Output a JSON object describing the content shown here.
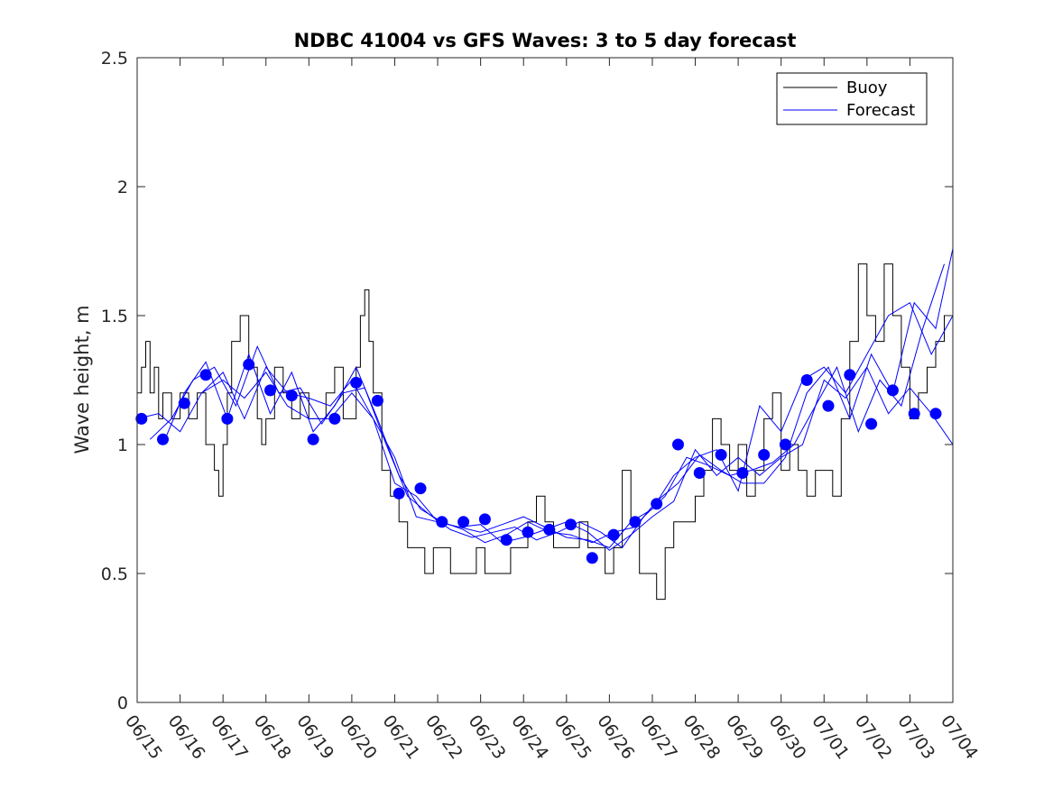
{
  "chart_data": {
    "type": "line",
    "title": "NDBC 41004 vs GFS Waves: 3 to 5 day forecast",
    "xlabel": "",
    "ylabel": "Wave height, m",
    "xlim": [
      "06/15",
      "07/04"
    ],
    "ylim": [
      0,
      2.5
    ],
    "yticks": [
      0,
      0.5,
      1,
      1.5,
      2,
      2.5
    ],
    "ytick_labels": [
      "0",
      "0.5",
      "1",
      "1.5",
      "2",
      "2.5"
    ],
    "xtick_labels": [
      "06/15",
      "06/16",
      "06/17",
      "06/18",
      "06/19",
      "06/20",
      "06/21",
      "06/22",
      "06/23",
      "06/24",
      "06/25",
      "06/26",
      "06/27",
      "06/28",
      "06/29",
      "06/30",
      "07/01",
      "07/02",
      "07/03",
      "07/04"
    ],
    "grid": false,
    "legend": {
      "position": "top-right",
      "entries": [
        "Buoy",
        "Forecast"
      ]
    },
    "colors": {
      "buoy": "#000000",
      "forecast": "#0000ff",
      "markers": "#0000ff"
    },
    "buoy": {
      "name": "Buoy",
      "x_days": [
        0,
        0.1,
        0.2,
        0.3,
        0.4,
        0.5,
        0.6,
        0.8,
        1.0,
        1.2,
        1.4,
        1.6,
        1.8,
        1.9,
        2.0,
        2.1,
        2.2,
        2.4,
        2.6,
        2.8,
        2.9,
        3.0,
        3.2,
        3.4,
        3.6,
        3.8,
        4.0,
        4.2,
        4.4,
        4.6,
        4.8,
        5.0,
        5.1,
        5.2,
        5.3,
        5.4,
        5.5,
        5.7,
        5.9,
        6.1,
        6.3,
        6.5,
        6.7,
        6.9,
        7.1,
        7.3,
        7.5,
        7.7,
        7.9,
        8.1,
        8.3,
        8.5,
        8.7,
        8.9,
        9.1,
        9.3,
        9.5,
        9.7,
        9.9,
        10.1,
        10.3,
        10.5,
        10.7,
        10.9,
        11.1,
        11.3,
        11.5,
        11.7,
        11.9,
        12.1,
        12.3,
        12.5,
        12.7,
        13.0,
        13.2,
        13.4,
        13.6,
        13.8,
        14.0,
        14.2,
        14.4,
        14.6,
        14.8,
        15.0,
        15.2,
        15.4,
        15.6,
        15.8,
        16.0,
        16.2,
        16.4,
        16.6,
        16.8,
        17.0,
        17.2,
        17.4,
        17.6,
        17.8,
        18.0,
        18.2,
        18.4,
        18.6,
        18.8,
        19.0
      ],
      "values": [
        1.2,
        1.3,
        1.4,
        1.2,
        1.3,
        1.1,
        1.2,
        1.1,
        1.2,
        1.1,
        1.2,
        1.0,
        0.9,
        0.8,
        1.0,
        1.2,
        1.4,
        1.5,
        1.3,
        1.1,
        1.0,
        1.1,
        1.3,
        1.2,
        1.1,
        1.2,
        1.1,
        1.1,
        1.2,
        1.3,
        1.1,
        1.1,
        1.3,
        1.5,
        1.6,
        1.4,
        1.2,
        0.9,
        0.8,
        0.7,
        0.6,
        0.6,
        0.5,
        0.6,
        0.6,
        0.5,
        0.5,
        0.5,
        0.6,
        0.5,
        0.5,
        0.5,
        0.6,
        0.6,
        0.7,
        0.8,
        0.7,
        0.6,
        0.6,
        0.6,
        0.7,
        0.6,
        0.6,
        0.5,
        0.6,
        0.9,
        0.7,
        0.5,
        0.5,
        0.4,
        0.6,
        0.7,
        0.7,
        0.8,
        0.9,
        1.1,
        1.0,
        0.9,
        1.0,
        0.8,
        0.9,
        1.1,
        1.2,
        0.9,
        1.0,
        0.9,
        0.8,
        0.9,
        0.9,
        0.8,
        1.1,
        1.4,
        1.7,
        1.5,
        1.4,
        1.7,
        1.5,
        1.3,
        1.1,
        1.2,
        1.3,
        1.4,
        1.5,
        1.3
      ]
    },
    "forecast_series": [
      {
        "x_days": [
          0,
          0.5,
          1.0,
          1.5,
          2.0,
          2.5,
          3.0,
          3.5,
          4.0,
          4.5,
          5.0,
          5.5,
          6.0,
          6.5,
          7.0,
          7.5,
          8.0,
          8.5,
          9.0,
          9.5,
          10.0,
          10.5,
          11.0,
          11.5,
          12.0,
          12.5,
          13.0,
          13.5,
          14.0,
          14.5,
          15.0,
          15.5,
          16.0,
          16.5,
          17.0,
          17.5,
          18.0,
          18.5,
          19.0
        ],
        "values": [
          1.1,
          1.12,
          1.05,
          1.2,
          1.28,
          1.1,
          1.3,
          1.2,
          1.18,
          1.15,
          1.25,
          1.1,
          0.85,
          0.8,
          0.7,
          0.68,
          0.69,
          0.62,
          0.64,
          0.67,
          0.7,
          0.66,
          0.59,
          0.65,
          0.72,
          0.78,
          0.98,
          0.88,
          0.95,
          0.88,
          0.95,
          1.0,
          1.25,
          1.18,
          1.3,
          1.12,
          1.22,
          1.12,
          1.0
        ]
      },
      {
        "x_days": [
          0.3,
          0.8,
          1.3,
          1.8,
          2.3,
          2.8,
          3.3,
          3.8,
          4.3,
          4.8,
          5.3,
          5.8,
          6.3,
          6.8,
          7.3,
          7.8,
          8.3,
          8.8,
          9.3,
          9.8,
          10.3,
          10.8,
          11.3,
          11.8,
          12.3,
          12.8,
          13.3,
          13.8,
          14.3,
          14.8,
          15.3,
          15.8,
          16.3,
          16.8,
          17.3,
          17.8,
          18.3,
          18.8
        ],
        "values": [
          1.02,
          1.1,
          1.25,
          1.3,
          1.15,
          1.38,
          1.2,
          1.22,
          1.08,
          1.2,
          1.22,
          1.0,
          0.8,
          0.73,
          0.67,
          0.64,
          0.66,
          0.68,
          0.63,
          0.66,
          0.7,
          0.66,
          0.6,
          0.72,
          0.8,
          0.95,
          0.92,
          0.88,
          0.9,
          0.93,
          1.0,
          1.15,
          1.3,
          1.05,
          1.25,
          1.15,
          1.45,
          1.7
        ]
      },
      {
        "x_days": [
          0.6,
          1.1,
          1.6,
          2.1,
          2.6,
          3.1,
          3.6,
          4.1,
          4.6,
          5.1,
          5.6,
          6.1,
          6.6,
          7.1,
          7.6,
          8.1,
          8.6,
          9.1,
          9.6,
          10.1,
          10.6,
          11.1,
          11.6,
          12.1,
          12.6,
          13.1,
          13.6,
          14.1,
          14.6,
          15.1,
          15.6,
          16.1,
          16.6,
          17.1,
          17.6,
          18.1,
          18.6,
          19.0
        ],
        "values": [
          1.0,
          1.2,
          1.32,
          1.1,
          1.35,
          1.12,
          1.28,
          1.05,
          1.15,
          1.3,
          1.1,
          0.88,
          0.75,
          0.7,
          0.67,
          0.62,
          0.65,
          0.7,
          0.66,
          0.65,
          0.62,
          0.66,
          0.68,
          0.78,
          0.85,
          0.96,
          0.9,
          0.85,
          0.85,
          0.95,
          1.2,
          1.3,
          1.1,
          1.35,
          1.2,
          1.55,
          1.45,
          1.76
        ]
      },
      {
        "x_days": [
          1.5,
          2.0,
          2.5,
          3.0,
          3.5,
          4.0,
          4.5,
          5.0,
          5.5,
          6.0,
          6.5,
          7.0,
          7.5,
          8.0,
          8.5,
          9.0,
          9.5,
          10.0,
          10.5,
          11.0,
          11.5,
          12.0,
          12.5,
          13.0,
          13.5,
          14.0,
          14.5,
          15.0,
          15.5,
          16.0,
          16.5,
          17.0,
          17.5,
          18.0,
          18.5,
          19.0
        ],
        "values": [
          1.2,
          1.25,
          1.18,
          1.28,
          1.15,
          1.1,
          1.1,
          1.2,
          1.1,
          0.95,
          0.72,
          0.7,
          0.68,
          0.66,
          0.69,
          0.72,
          0.68,
          0.64,
          0.63,
          0.6,
          0.7,
          0.75,
          0.88,
          0.95,
          0.98,
          0.82,
          1.15,
          1.05,
          1.25,
          1.3,
          1.2,
          1.35,
          1.5,
          1.55,
          1.35,
          1.5
        ]
      }
    ],
    "markers": {
      "x_days": [
        0.1,
        0.6,
        1.1,
        1.6,
        2.1,
        2.6,
        3.1,
        3.6,
        4.1,
        4.6,
        5.1,
        5.6,
        6.1,
        6.6,
        7.1,
        7.6,
        8.1,
        8.6,
        9.1,
        9.6,
        10.1,
        10.6,
        11.1,
        11.6,
        12.1,
        12.6,
        13.1,
        13.6,
        14.1,
        14.6,
        15.1,
        15.6,
        16.1,
        16.6,
        17.1,
        17.6,
        18.1,
        18.6
      ],
      "values": [
        1.1,
        1.02,
        1.16,
        1.27,
        1.1,
        1.31,
        1.21,
        1.19,
        1.02,
        1.1,
        1.24,
        1.17,
        0.81,
        0.83,
        0.7,
        0.7,
        0.71,
        0.63,
        0.66,
        0.67,
        0.69,
        0.56,
        0.65,
        0.7,
        0.77,
        1.0,
        0.89,
        0.96,
        0.89,
        0.96,
        1.0,
        1.25,
        1.15,
        1.27,
        1.08,
        1.21,
        1.12,
        1.12
      ]
    }
  }
}
